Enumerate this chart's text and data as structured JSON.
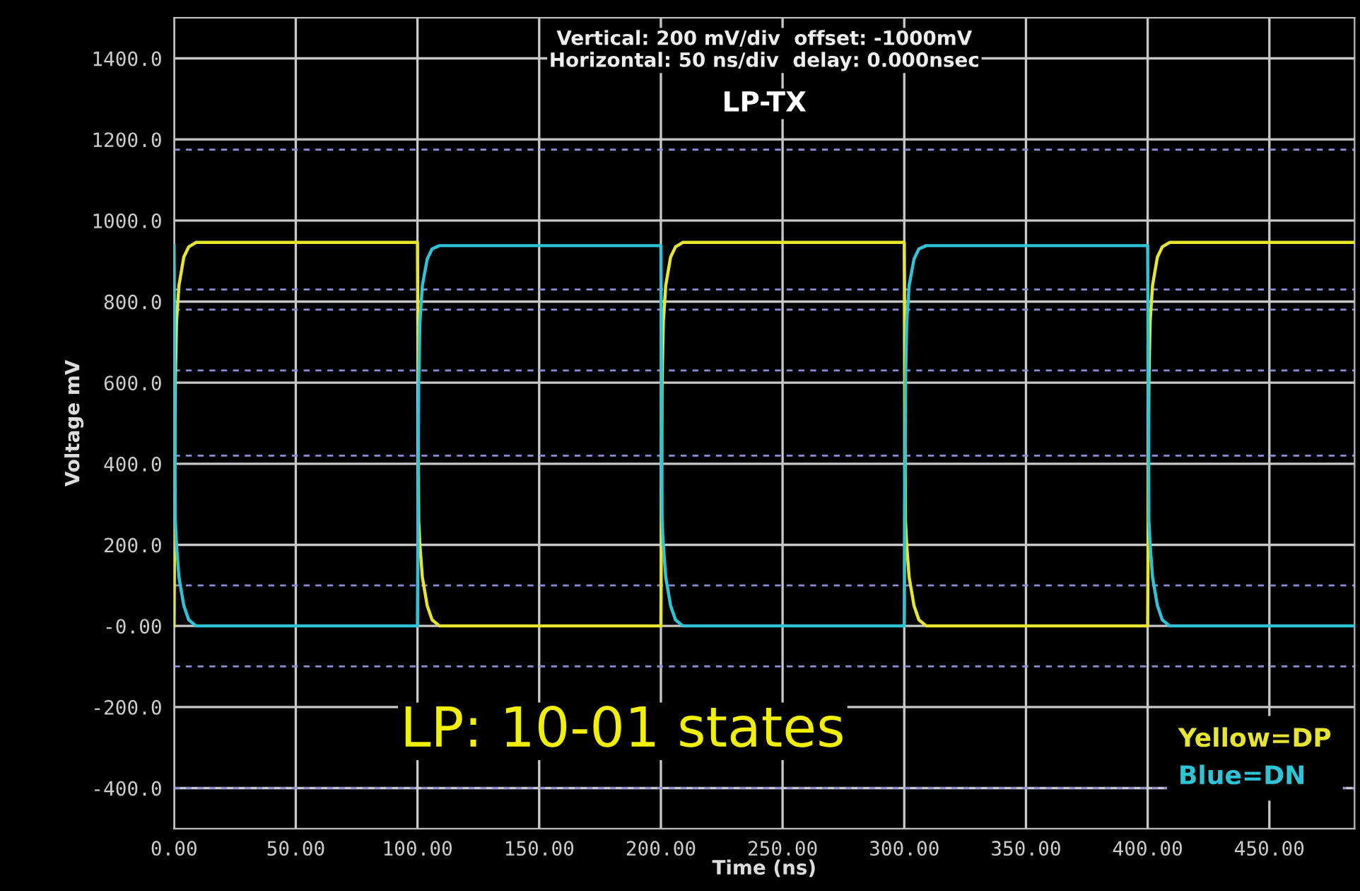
{
  "chart_data": {
    "type": "line",
    "title": "LP-TX",
    "xlabel": "Time (ns)",
    "ylabel": "Voltage mV",
    "xlim": [
      0,
      485
    ],
    "xticks": [
      {
        "value": 0,
        "label": "0.00"
      },
      {
        "value": 50,
        "label": "50.00"
      },
      {
        "value": 100,
        "label": "100.00"
      },
      {
        "value": 150,
        "label": "150.00"
      },
      {
        "value": 200,
        "label": "200.00"
      },
      {
        "value": 250,
        "label": "250.00"
      },
      {
        "value": 300,
        "label": "300.00"
      },
      {
        "value": 350,
        "label": "350.00"
      },
      {
        "value": 400,
        "label": "400.00"
      },
      {
        "value": 450,
        "label": "450.00"
      }
    ],
    "ylim": [
      -500,
      1500
    ],
    "yticks": [
      {
        "value": -400,
        "label": "-400.0"
      },
      {
        "value": -200,
        "label": "-200.0"
      },
      {
        "value": 0,
        "label": "-0.00"
      },
      {
        "value": 200,
        "label": "200.0"
      },
      {
        "value": 400,
        "label": "400.0"
      },
      {
        "value": 600,
        "label": "600.0"
      },
      {
        "value": 800,
        "label": "800.0"
      },
      {
        "value": 1000,
        "label": "1000.0"
      },
      {
        "value": 1200,
        "label": "1200.0"
      },
      {
        "value": 1400,
        "label": "1400.0"
      }
    ],
    "grid": true,
    "legend": "bottom right",
    "marker": "none",
    "line_style": "solid",
    "series": [
      {
        "name": "Yellow=DP",
        "color": "#e6e62e",
        "x": [
          0,
          0.5,
          1,
          2,
          4,
          6,
          9,
          100,
          100.5,
          101,
          102,
          104,
          106,
          109,
          200,
          200.5,
          201,
          202,
          204,
          206,
          209,
          300,
          300.5,
          301,
          302,
          304,
          306,
          309,
          400,
          400.5,
          401,
          402,
          404,
          406,
          409,
          485
        ],
        "values": [
          0,
          600,
          750,
          840,
          910,
          935,
          946,
          946,
          260,
          200,
          120,
          50,
          15,
          0,
          0,
          600,
          750,
          840,
          910,
          935,
          946,
          946,
          260,
          200,
          120,
          50,
          15,
          0,
          0,
          600,
          750,
          840,
          910,
          935,
          946,
          946
        ]
      },
      {
        "name": "Blue=DN",
        "color": "#2ec4d6",
        "x": [
          0,
          0.5,
          1,
          2,
          4,
          6,
          9,
          100,
          100.5,
          101,
          102,
          104,
          106,
          109,
          200,
          200.5,
          201,
          202,
          204,
          206,
          209,
          300,
          300.5,
          301,
          302,
          304,
          306,
          309,
          400,
          400.5,
          401,
          402,
          404,
          406,
          409,
          485
        ],
        "values": [
          938,
          260,
          200,
          120,
          50,
          15,
          0,
          0,
          600,
          750,
          840,
          905,
          930,
          938,
          938,
          260,
          200,
          120,
          50,
          15,
          0,
          0,
          600,
          750,
          840,
          905,
          930,
          938,
          938,
          260,
          200,
          120,
          50,
          15,
          0,
          0
        ]
      }
    ],
    "ref_lines": [
      {
        "axis": "y",
        "value": 1175,
        "color": "#8c8cd9",
        "line_style": "dashed"
      },
      {
        "axis": "y",
        "value": 830,
        "color": "#8c8cd9",
        "line_style": "dashed"
      },
      {
        "axis": "y",
        "value": 780,
        "color": "#8c8cd9",
        "line_style": "dashed"
      },
      {
        "axis": "y",
        "value": 630,
        "color": "#8c8cd9",
        "line_style": "dashed"
      },
      {
        "axis": "y",
        "value": 420,
        "color": "#8c8cd9",
        "line_style": "dashed"
      },
      {
        "axis": "y",
        "value": 100,
        "color": "#8c8cd9",
        "line_style": "dashed"
      },
      {
        "axis": "y",
        "value": -100,
        "color": "#8c8cd9",
        "line_style": "dashed"
      },
      {
        "axis": "y",
        "value": -400,
        "color": "#8c8cd9",
        "line_style": "dashed"
      }
    ],
    "annotations": [
      "Vertical: 200 mV/div  offset: -1000mV",
      "Horizontal: 50 ns/div  delay: 0.000nsec",
      "LP: 10-01 states"
    ]
  }
}
